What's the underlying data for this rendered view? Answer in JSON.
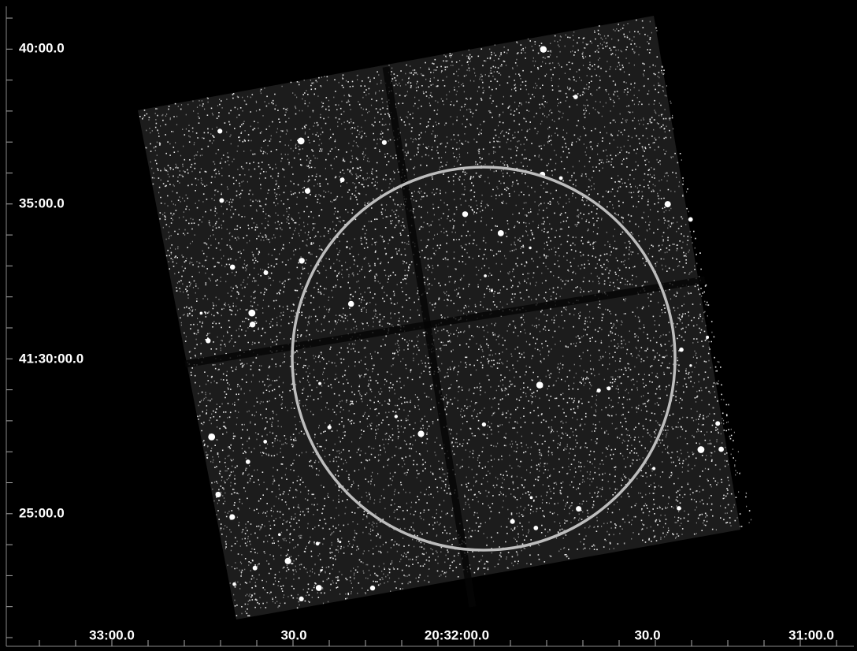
{
  "axes": {
    "dec_labels": [
      "40:00.0",
      "35:00.0",
      "41:30:00.0",
      "25:00.0"
    ],
    "ra_labels": [
      "33:00.0",
      "30.0",
      "20:32:00.0",
      "30.0",
      "31:00.0"
    ]
  }
}
